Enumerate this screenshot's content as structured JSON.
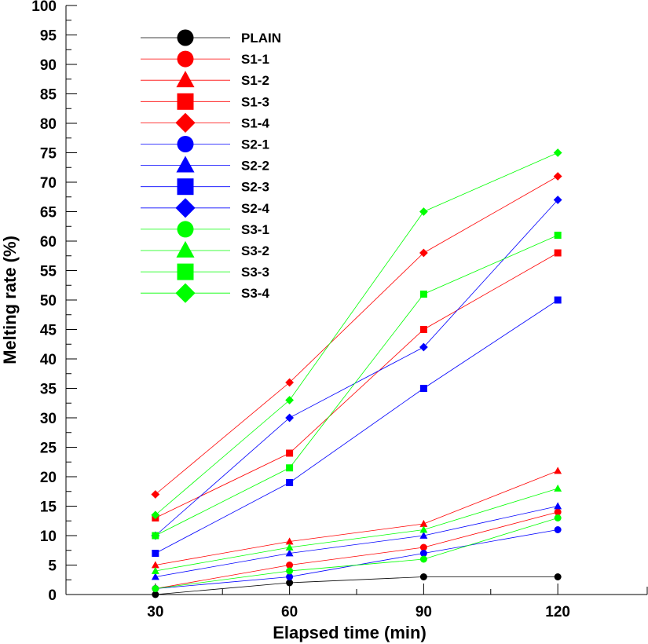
{
  "chart_data": {
    "type": "line",
    "xlabel": "Elapsed time (min)",
    "ylabel": "Melting rate (%)",
    "x": [
      30,
      60,
      90,
      120
    ],
    "xticks": [
      "30",
      "60",
      "90",
      "120"
    ],
    "xlim": [
      10,
      140
    ],
    "ylim": [
      0,
      100
    ],
    "ytick_step": 5,
    "grid": false,
    "legend_position": "top-left",
    "series": [
      {
        "name": "PLAIN",
        "color": "#000000",
        "marker": "circle",
        "values": [
          0,
          2,
          3,
          3
        ]
      },
      {
        "name": "S1-1",
        "color": "#ff0000",
        "marker": "circle",
        "values": [
          1,
          5,
          8,
          14
        ]
      },
      {
        "name": "S1-2",
        "color": "#ff0000",
        "marker": "triangle",
        "values": [
          5,
          9,
          12,
          21
        ]
      },
      {
        "name": "S1-3",
        "color": "#ff0000",
        "marker": "square",
        "values": [
          13,
          24,
          45,
          58
        ]
      },
      {
        "name": "S1-4",
        "color": "#ff0000",
        "marker": "diamond",
        "values": [
          17,
          36,
          58,
          71
        ]
      },
      {
        "name": "S2-1",
        "color": "#0000ff",
        "marker": "circle",
        "values": [
          1,
          3,
          7,
          11
        ]
      },
      {
        "name": "S2-2",
        "color": "#0000ff",
        "marker": "triangle",
        "values": [
          3,
          7,
          10,
          15
        ]
      },
      {
        "name": "S2-3",
        "color": "#0000ff",
        "marker": "square",
        "values": [
          7,
          19,
          35,
          50
        ]
      },
      {
        "name": "S2-4",
        "color": "#0000ff",
        "marker": "diamond",
        "values": [
          10,
          30,
          42,
          67
        ]
      },
      {
        "name": "S3-1",
        "color": "#00ff00",
        "marker": "circle",
        "values": [
          1,
          4,
          6,
          13
        ]
      },
      {
        "name": "S3-2",
        "color": "#00ff00",
        "marker": "triangle",
        "values": [
          4,
          8,
          11,
          18
        ]
      },
      {
        "name": "S3-3",
        "color": "#00ff00",
        "marker": "square",
        "values": [
          10,
          21.5,
          51,
          61
        ]
      },
      {
        "name": "S3-4",
        "color": "#00ff00",
        "marker": "diamond",
        "values": [
          13.5,
          33,
          65,
          75
        ]
      }
    ]
  }
}
